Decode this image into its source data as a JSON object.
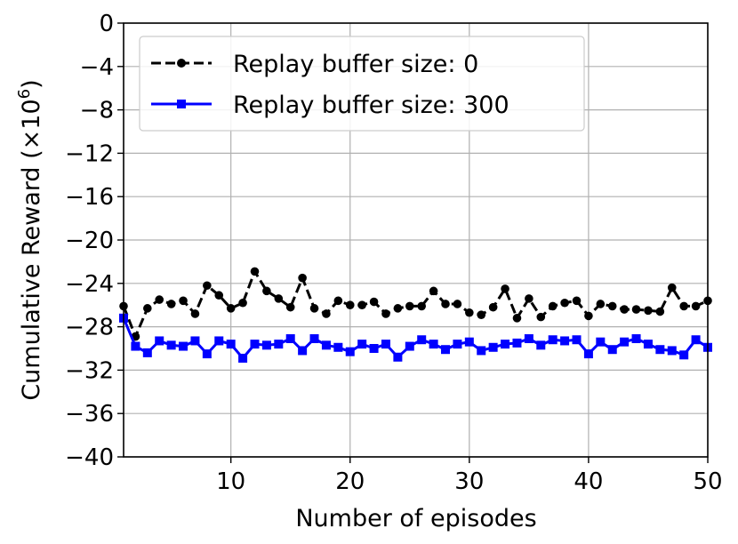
{
  "chart_data": {
    "type": "line",
    "xlabel": "Number of episodes",
    "ylabel": "Cumulative Reward (×10",
    "ylabel_exponent": "6",
    "ylabel_close": ")",
    "xlim": [
      1,
      50
    ],
    "ylim": [
      -40,
      0
    ],
    "xticks": [
      10,
      20,
      30,
      40,
      50
    ],
    "xtick_labels": [
      "10",
      "20",
      "30",
      "40",
      "50"
    ],
    "yticks": [
      0,
      -4,
      -8,
      -12,
      -16,
      -20,
      -24,
      -28,
      -32,
      -36,
      -40
    ],
    "ytick_labels": [
      "0",
      "−4",
      "−8",
      "−12",
      "−16",
      "−20",
      "−24",
      "−28",
      "−32",
      "−36",
      "−40"
    ],
    "grid": true,
    "legend_position": "top-left",
    "x": [
      1,
      2,
      3,
      4,
      5,
      6,
      7,
      8,
      9,
      10,
      11,
      12,
      13,
      14,
      15,
      16,
      17,
      18,
      19,
      20,
      21,
      22,
      23,
      24,
      25,
      26,
      27,
      28,
      29,
      30,
      31,
      32,
      33,
      34,
      35,
      36,
      37,
      38,
      39,
      40,
      41,
      42,
      43,
      44,
      45,
      46,
      47,
      48,
      49,
      50
    ],
    "series": [
      {
        "name": "Replay buffer size: 0",
        "color": "#000000",
        "line_style": "dashed",
        "marker": "circle",
        "values": [
          -26.1,
          -28.9,
          -26.3,
          -25.5,
          -25.9,
          -25.6,
          -26.8,
          -24.2,
          -25.1,
          -26.3,
          -25.8,
          -22.9,
          -24.7,
          -25.4,
          -26.2,
          -23.5,
          -26.3,
          -26.8,
          -25.6,
          -26.0,
          -26.0,
          -25.7,
          -26.8,
          -26.3,
          -26.1,
          -26.1,
          -24.7,
          -25.9,
          -25.9,
          -26.7,
          -26.9,
          -26.2,
          -24.5,
          -27.2,
          -25.4,
          -27.1,
          -26.1,
          -25.8,
          -25.6,
          -27.0,
          -25.9,
          -26.1,
          -26.4,
          -26.4,
          -26.5,
          -26.6,
          -24.4,
          -26.1,
          -26.1,
          -25.6
        ]
      },
      {
        "name": "Replay buffer size: 300",
        "color": "#0000ff",
        "line_style": "solid",
        "marker": "square",
        "values": [
          -27.2,
          -29.8,
          -30.4,
          -29.3,
          -29.7,
          -29.8,
          -29.3,
          -30.5,
          -29.3,
          -29.6,
          -30.9,
          -29.6,
          -29.7,
          -29.6,
          -29.1,
          -30.2,
          -29.1,
          -29.7,
          -29.9,
          -30.3,
          -29.6,
          -30.0,
          -29.6,
          -30.8,
          -29.8,
          -29.2,
          -29.6,
          -30.1,
          -29.6,
          -29.4,
          -30.2,
          -29.9,
          -29.6,
          -29.5,
          -29.1,
          -29.7,
          -29.2,
          -29.3,
          -29.2,
          -30.5,
          -29.4,
          -30.1,
          -29.4,
          -29.1,
          -29.6,
          -30.1,
          -30.2,
          -30.6,
          -29.2,
          -29.9
        ]
      }
    ]
  }
}
